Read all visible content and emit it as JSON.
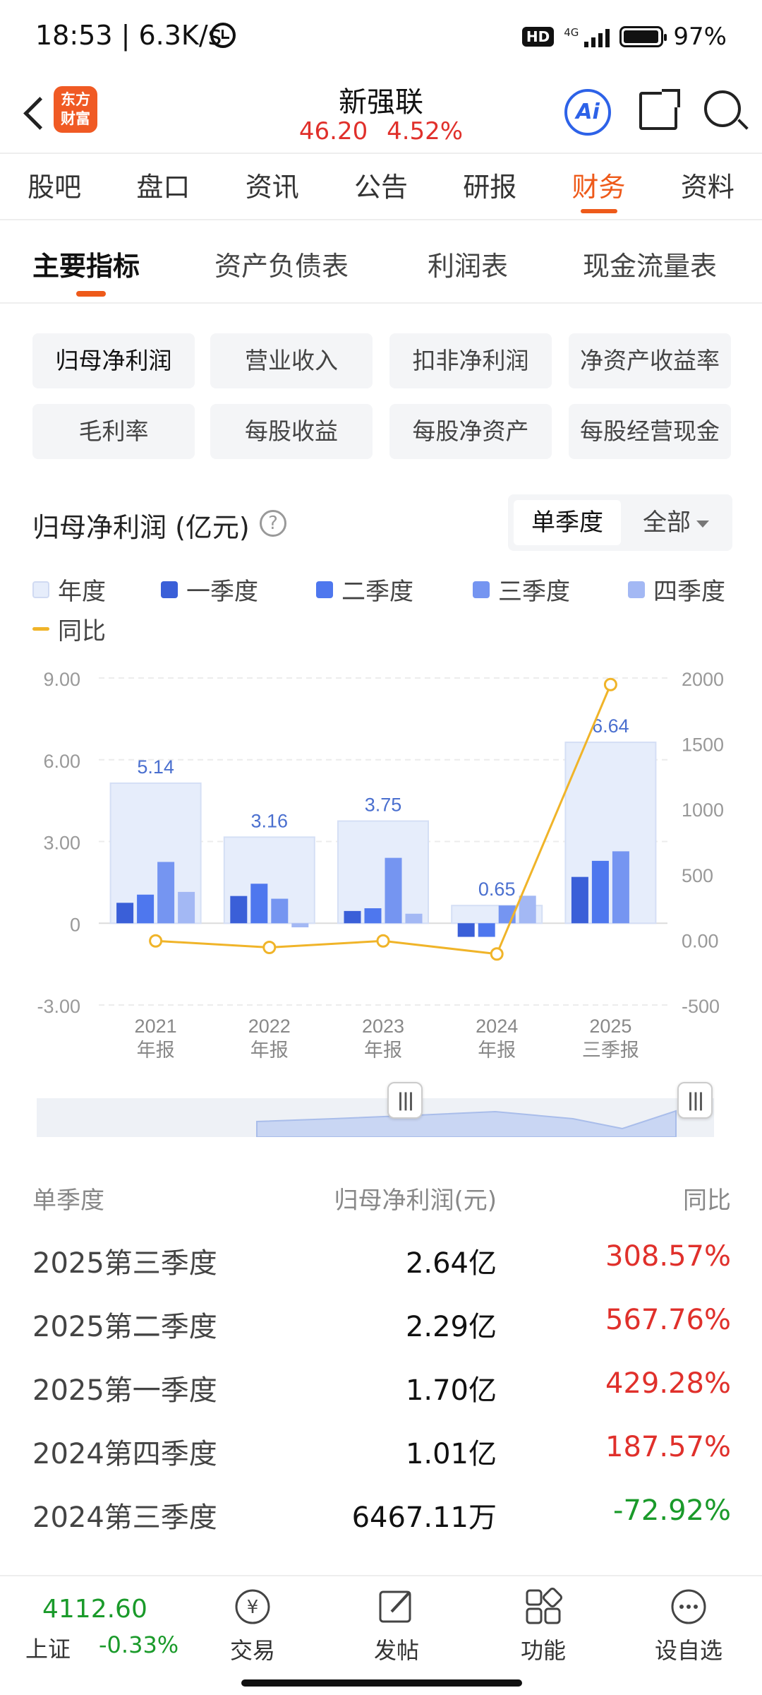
{
  "status_bar": {
    "time": "18:53 | 6.3K/s",
    "network": "4G",
    "hd": "HD",
    "battery": "97%",
    "battery_level": 0.97
  },
  "header": {
    "logo": [
      "东方",
      "财富"
    ],
    "stock_name": "新强联",
    "price": "46.20",
    "change_pct": "4.52%",
    "ai_label": "Ai"
  },
  "tabs": [
    "股吧",
    "盘口",
    "资讯",
    "公告",
    "研报",
    "财务",
    "资料"
  ],
  "active_tab": "财务",
  "subtabs": [
    "主要指标",
    "资产负债表",
    "利润表",
    "现金流量表"
  ],
  "metrics": [
    "归母净利润",
    "营业收入",
    "扣非净利润",
    "净资产收益率",
    "毛利率",
    "每股收益",
    "每股净资产",
    "每股经营现金"
  ],
  "chart_header": {
    "title": "归母净利润 (亿元)",
    "help": "?",
    "period_active": "单季度",
    "period_other": "全部"
  },
  "legend": [
    "年度",
    "一季度",
    "二季度",
    "三季度",
    "四季度",
    "同比"
  ],
  "colors": {
    "accent": "#ee5a1a",
    "up": "#e0302b",
    "down": "#1a9a2a",
    "year": "#e6edfb",
    "q1": "#3a5fd8",
    "q2": "#4e77ee",
    "q3": "#7595f1",
    "q4": "#a3b8f4",
    "yoy": "#f0b429"
  },
  "chart_data": {
    "type": "bar",
    "categories": [
      "2021",
      "2022",
      "2023",
      "2024",
      "2025"
    ],
    "category_sublabels": [
      "年报",
      "年报",
      "年报",
      "年报",
      "三季报"
    ],
    "annual": [
      5.14,
      3.16,
      3.75,
      0.65,
      6.64
    ],
    "annual_labels": [
      "5.14",
      "3.16",
      "3.75",
      "0.65",
      "6.64"
    ],
    "series": [
      {
        "name": "一季度",
        "values": [
          0.75,
          1.0,
          0.45,
          -0.5,
          1.7
        ]
      },
      {
        "name": "二季度",
        "values": [
          1.05,
          1.45,
          0.55,
          -0.5,
          2.29
        ]
      },
      {
        "name": "三季度",
        "values": [
          2.25,
          0.9,
          2.4,
          0.65,
          2.64
        ]
      },
      {
        "name": "四季度",
        "values": [
          1.15,
          -0.15,
          0.35,
          1.01,
          null
        ]
      }
    ],
    "yoy": [
      -10,
      -60,
      -10,
      -110,
      1950
    ],
    "left_axis": {
      "ticks": [
        "9.00",
        "6.00",
        "3.00",
        "0",
        "-3.00"
      ],
      "range": [
        -3,
        9
      ]
    },
    "right_axis": {
      "ticks": [
        "2000",
        "1500",
        "1000",
        "500",
        "0.00",
        "-500"
      ],
      "range": [
        -500,
        2000
      ]
    },
    "grid": true
  },
  "table": {
    "headers": [
      "单季度",
      "归母净利润(元)",
      "同比"
    ],
    "rows": [
      {
        "period": "2025第三季度",
        "value": "2.64亿",
        "yoy": "308.57%",
        "dir": "up"
      },
      {
        "period": "2025第二季度",
        "value": "2.29亿",
        "yoy": "567.76%",
        "dir": "up"
      },
      {
        "period": "2025第一季度",
        "value": "1.70亿",
        "yoy": "429.28%",
        "dir": "up"
      },
      {
        "period": "2024第四季度",
        "value": "1.01亿",
        "yoy": "187.57%",
        "dir": "up"
      },
      {
        "period": "2024第三季度",
        "value": "6467.11万",
        "yoy": "-72.92%",
        "dir": "down"
      }
    ]
  },
  "bottom_nav": {
    "index_value": "4112.60",
    "index_name": "上证",
    "index_change": "-0.33%",
    "items": [
      "交易",
      "发帖",
      "功能",
      "设自选"
    ]
  },
  "range_handle_glyph": "|||"
}
